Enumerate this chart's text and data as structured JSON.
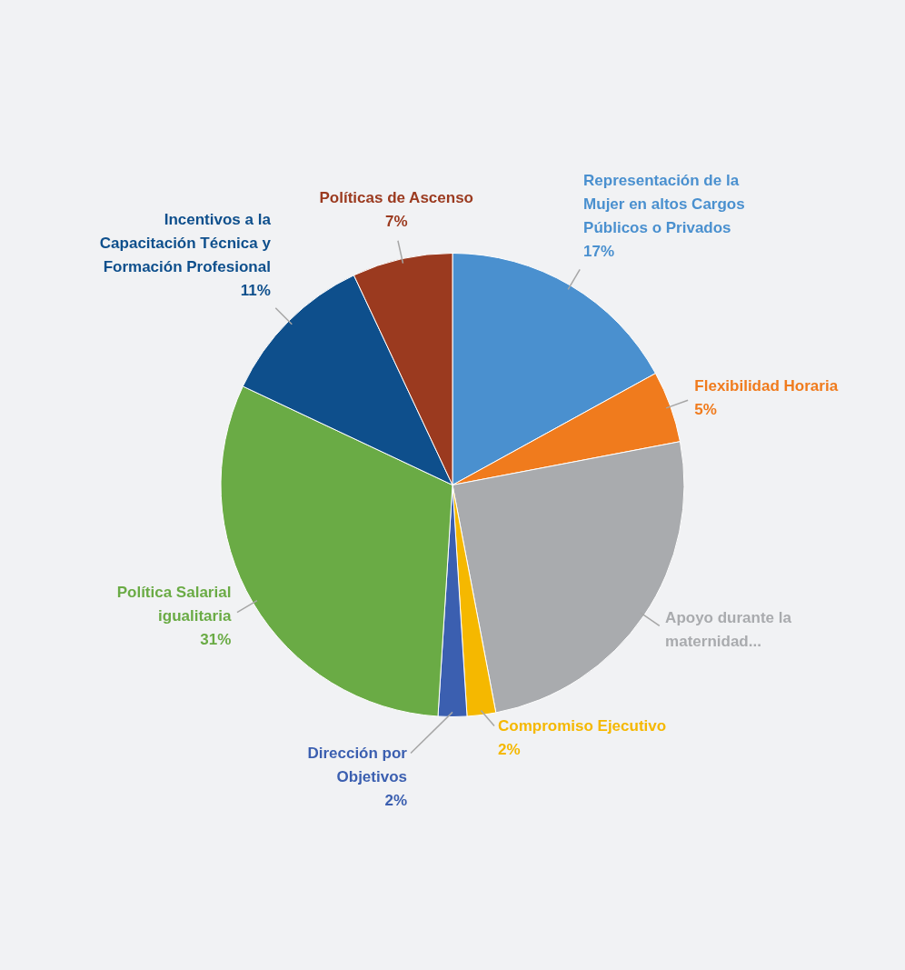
{
  "chart_data": {
    "type": "pie",
    "categories": [
      "Representación de la Mujer en altos Cargos Públicos o Privados",
      "Flexibilidad Horaria",
      "Apoyo durante la maternidad...",
      "Compromiso Ejecutivo",
      "Dirección por Objetivos",
      "Política Salarial igualitaria",
      "Incentivos a la Capacitación Técnica y Formación Profesional",
      "Políticas de Ascenso"
    ],
    "values": [
      17,
      5,
      25,
      2,
      2,
      31,
      11,
      7
    ],
    "value_labels": [
      "17%",
      "5%",
      null,
      "2%",
      "2%",
      "31%",
      "11%",
      "7%"
    ],
    "colors": [
      "#4a90cf",
      "#f07b1d",
      "#a9abae",
      "#f5b800",
      "#3b5fb0",
      "#6aab45",
      "#0e4f8c",
      "#9b3a1f"
    ]
  }
}
